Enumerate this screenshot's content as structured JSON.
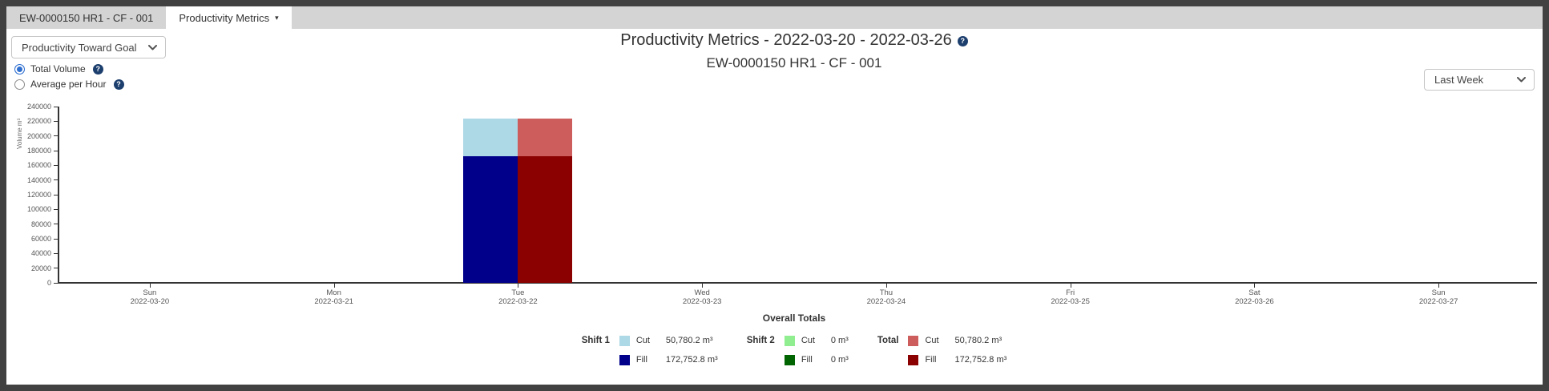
{
  "tabs": {
    "inactive_label": "EW-0000150 HR1 - CF - 001",
    "active_label": "Productivity Metrics",
    "active_caret": "▾"
  },
  "controls": {
    "metric_select": {
      "value": "Productivity Toward Goal"
    },
    "radios": [
      {
        "label": "Total Volume",
        "checked": true,
        "help": "?"
      },
      {
        "label": "Average per Hour",
        "checked": false,
        "help": "?"
      }
    ],
    "range_select": {
      "value": "Last Week"
    }
  },
  "header": {
    "title": "Productivity Metrics - 2022-03-20 - 2022-03-26",
    "help": "?",
    "subtitle": "EW-0000150 HR1 - CF - 001"
  },
  "chart_data": {
    "type": "bar",
    "stacked": true,
    "grid": false,
    "title": "Productivity Metrics - 2022-03-20 - 2022-03-26",
    "ylabel": "Volume m³",
    "ylim": [
      0,
      240000
    ],
    "ytick_step": 20000,
    "categories": [
      {
        "day": "Sun",
        "date": "2022-03-20"
      },
      {
        "day": "Mon",
        "date": "2022-03-21"
      },
      {
        "day": "Tue",
        "date": "2022-03-22"
      },
      {
        "day": "Wed",
        "date": "2022-03-23"
      },
      {
        "day": "Thu",
        "date": "2022-03-24"
      },
      {
        "day": "Fri",
        "date": "2022-03-25"
      },
      {
        "day": "Sat",
        "date": "2022-03-26"
      },
      {
        "day": "Sun",
        "date": "2022-03-27"
      }
    ],
    "bars": [
      {
        "category_index": 2,
        "side": "left",
        "series": "Shift 1",
        "segments": [
          {
            "name": "Fill",
            "value": 172752.8,
            "color": "#00008B"
          },
          {
            "name": "Cut",
            "value": 50780.2,
            "color": "#ADD8E6"
          }
        ]
      },
      {
        "category_index": 2,
        "side": "right",
        "series": "Total",
        "segments": [
          {
            "name": "Fill",
            "value": 172752.8,
            "color": "#8B0000"
          },
          {
            "name": "Cut",
            "value": 50780.2,
            "color": "#CD5C5C"
          }
        ]
      }
    ]
  },
  "legend": {
    "title": "Overall Totals",
    "groups": [
      {
        "label": "Shift 1",
        "rows": [
          {
            "name": "Cut",
            "value": "50,780.2 m³",
            "color": "#ADD8E6"
          },
          {
            "name": "Fill",
            "value": "172,752.8 m³",
            "color": "#00008B"
          }
        ]
      },
      {
        "label": "Shift 2",
        "rows": [
          {
            "name": "Cut",
            "value": "0 m³",
            "color": "#90EE90"
          },
          {
            "name": "Fill",
            "value": "0 m³",
            "color": "#006400"
          }
        ]
      },
      {
        "label": "Total",
        "rows": [
          {
            "name": "Cut",
            "value": "50,780.2 m³",
            "color": "#CD5C5C"
          },
          {
            "name": "Fill",
            "value": "172,752.8 m³",
            "color": "#8B0000"
          }
        ]
      }
    ]
  },
  "ui_colors": {
    "frame": "#414141",
    "tab_strip_bg": "#d4d4d4",
    "help_icon_bg": "#1d3f6e",
    "radio_accent": "#2e6fd0",
    "axis": "#333333"
  }
}
